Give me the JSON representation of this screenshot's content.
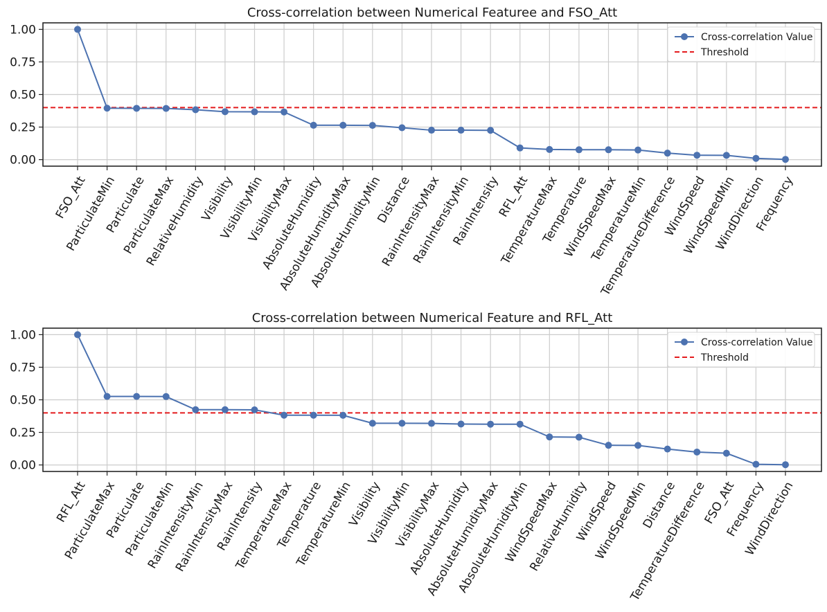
{
  "chart_data": [
    {
      "type": "line",
      "title": "Cross-correlation between Numerical Featuree and FSO_Att",
      "xlabel": "",
      "ylabel": "",
      "categories": [
        "FSO_Att",
        "ParticulateMin",
        "Particulate",
        "ParticulateMax",
        "RelativeHumidity",
        "Visibility",
        "VisibilityMin",
        "VisibilityMax",
        "AbsoluteHumidity",
        "AbsoluteHumidityMax",
        "AbsoluteHumidityMin",
        "Distance",
        "RainIntensityMax",
        "RainIntensityMin",
        "RainIntensity",
        "RFL_Att",
        "TemperatureMax",
        "Temperature",
        "WindSpeedMax",
        "TemperatureMin",
        "TemperatureDifference",
        "WindSpeed",
        "WindSpeedMin",
        "WindDirection",
        "Frequency"
      ],
      "series": [
        {
          "name": "Cross-correlation Value",
          "color": "#4c72b0",
          "values": [
            1.0,
            0.395,
            0.394,
            0.393,
            0.383,
            0.368,
            0.367,
            0.366,
            0.264,
            0.264,
            0.263,
            0.245,
            0.226,
            0.226,
            0.225,
            0.09,
            0.078,
            0.076,
            0.076,
            0.074,
            0.05,
            0.034,
            0.033,
            0.01,
            0.002
          ]
        }
      ],
      "threshold": {
        "name": "Threshold",
        "value": 0.4,
        "color": "#e41a1c",
        "style": "dashed"
      },
      "yticks": [
        "0.00",
        "0.25",
        "0.50",
        "0.75",
        "1.00"
      ],
      "ylim": [
        -0.05,
        1.05
      ],
      "grid": true,
      "legend_position": "top-right"
    },
    {
      "type": "line",
      "title": "Cross-correlation between Numerical Feature and RFL_Att",
      "xlabel": "",
      "ylabel": "",
      "categories": [
        "RFL_Att",
        "ParticulateMax",
        "Particulate",
        "ParticulateMin",
        "RainIntensityMin",
        "RainIntensityMax",
        "RainIntensity",
        "TemperatureMax",
        "Temperature",
        "TemperatureMin",
        "Visibility",
        "VisibilityMin",
        "VisibilityMax",
        "AbsoluteHumidity",
        "AbsoluteHumidityMax",
        "AbsoluteHumidityMin",
        "WindSpeedMax",
        "RelativeHumidity",
        "WindSpeed",
        "WindSpeedMin",
        "Distance",
        "TemperatureDifference",
        "FSO_Att",
        "Frequency",
        "WindDirection"
      ],
      "series": [
        {
          "name": "Cross-correlation Value",
          "color": "#4c72b0",
          "values": [
            1.0,
            0.526,
            0.526,
            0.525,
            0.424,
            0.424,
            0.423,
            0.382,
            0.382,
            0.381,
            0.32,
            0.32,
            0.319,
            0.314,
            0.313,
            0.313,
            0.215,
            0.213,
            0.151,
            0.15,
            0.122,
            0.099,
            0.09,
            0.005,
            0.002
          ]
        }
      ],
      "threshold": {
        "name": "Threshold",
        "value": 0.4,
        "color": "#e41a1c",
        "style": "dashed"
      },
      "yticks": [
        "0.00",
        "0.25",
        "0.50",
        "0.75",
        "1.00"
      ],
      "ylim": [
        -0.05,
        1.05
      ],
      "grid": true,
      "legend_position": "top-right"
    }
  ]
}
